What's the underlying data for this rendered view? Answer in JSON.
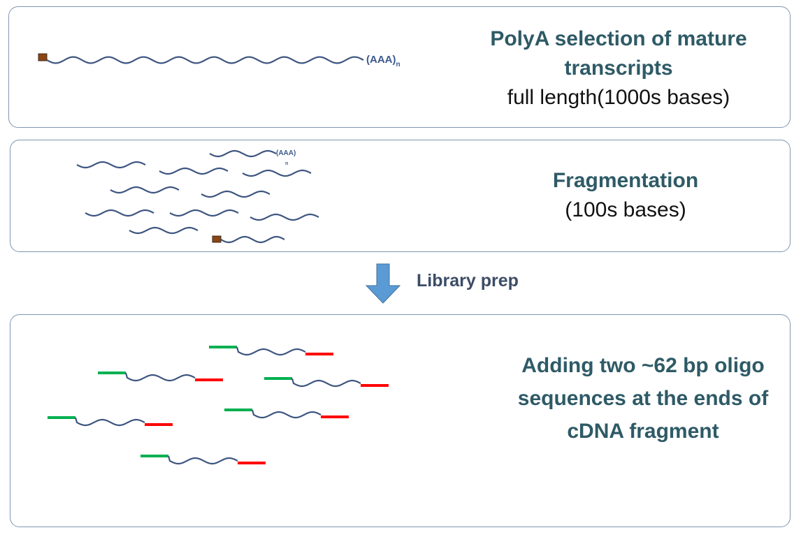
{
  "step1": {
    "title": "PolyA selection of mature transcripts",
    "subtitle": "full length(1000s bases)",
    "tail_label": "(AAA)",
    "tail_subscript": "n"
  },
  "step2": {
    "title": "Fragmentation",
    "subtitle": "(100s bases)",
    "tail_label": "(AAA)",
    "tail_subscript": "n"
  },
  "transition": {
    "label": "Library prep"
  },
  "step3": {
    "title": "Adding two ~62 bp oligo sequences at the ends of cDNA fragment"
  },
  "colors": {
    "strand": "#3d5580",
    "cap": "#8b4513",
    "adapter_left": "#00b050",
    "adapter_right": "#ff0000",
    "arrow_fill": "#5b9bd5",
    "panel_border": "#7f96b2",
    "caption_teal": "#2e5a66"
  }
}
